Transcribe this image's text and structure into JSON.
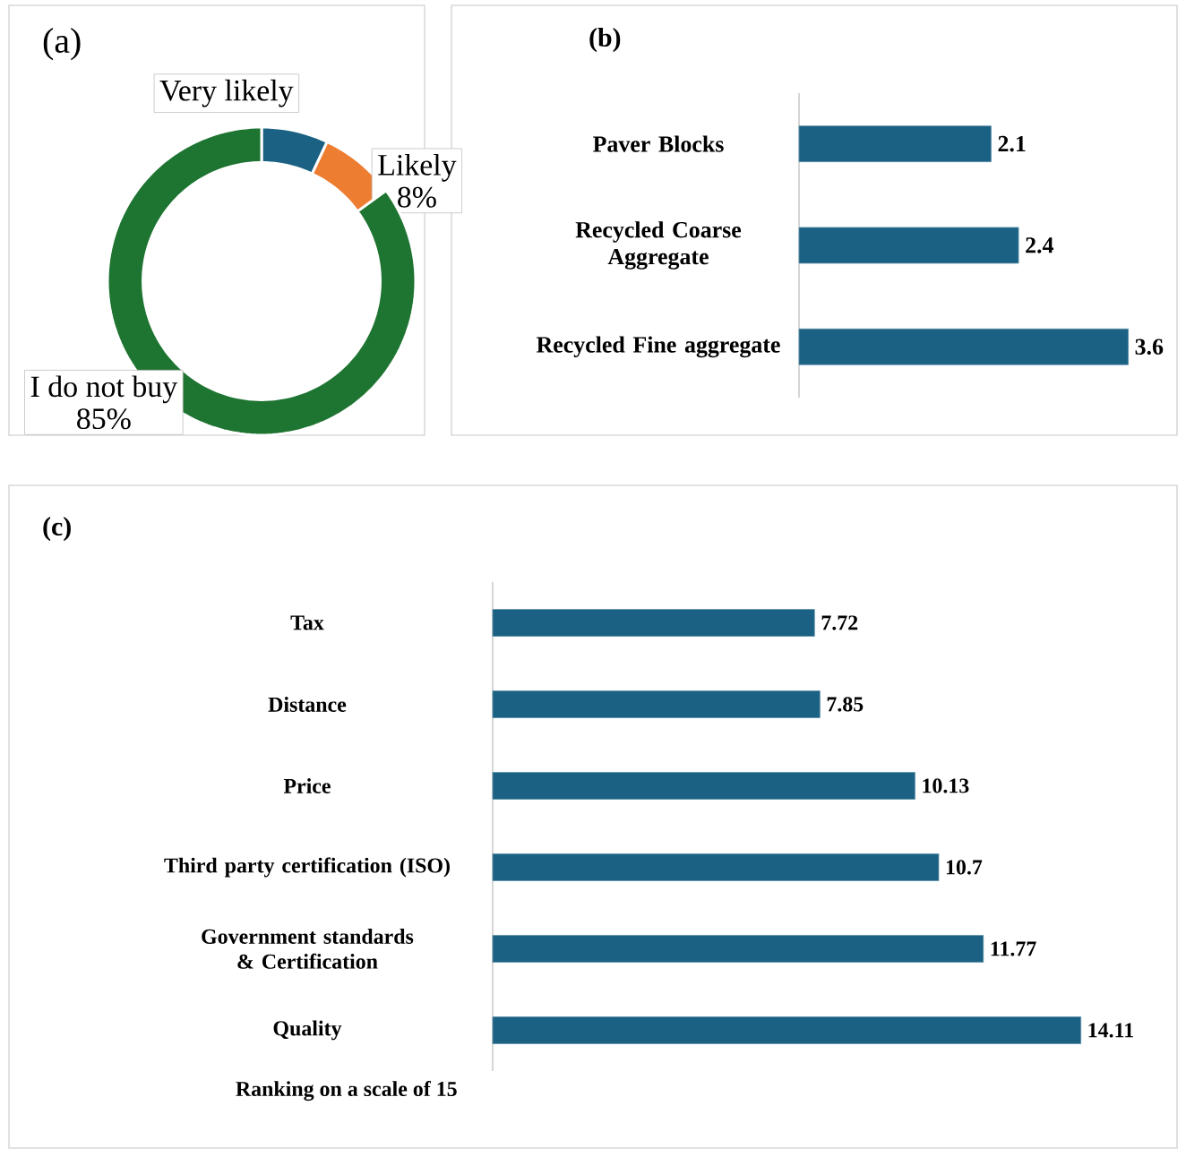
{
  "chart_data": [
    {
      "type": "donut",
      "title": "(a)",
      "categories": [
        "Very likely",
        "Likely",
        "I do not buy"
      ],
      "values": [
        7,
        8,
        85
      ],
      "colors": [
        "#1b6183",
        "#ed7d31",
        "#1e7431"
      ],
      "value_labels": [
        null,
        "8%",
        "85%"
      ]
    },
    {
      "type": "bar",
      "title": "(b)",
      "orientation": "horizontal",
      "categories": [
        "Paver Blocks",
        "Recycled Coarse Aggregate",
        "Recycled Fine aggregate"
      ],
      "values": [
        2.1,
        2.4,
        3.6
      ],
      "color": "#1b6183",
      "data_labels": true
    },
    {
      "type": "bar",
      "title": "(c)",
      "orientation": "horizontal",
      "xlabel": "Ranking on a scale of 15",
      "categories": [
        "Tax",
        "Distance",
        "Price",
        "Third party certification (ISO)",
        "Government standards & Certification",
        "Quality"
      ],
      "values": [
        7.72,
        7.85,
        10.13,
        10.7,
        11.77,
        14.11
      ],
      "color": "#1b6183",
      "data_labels": true
    }
  ]
}
